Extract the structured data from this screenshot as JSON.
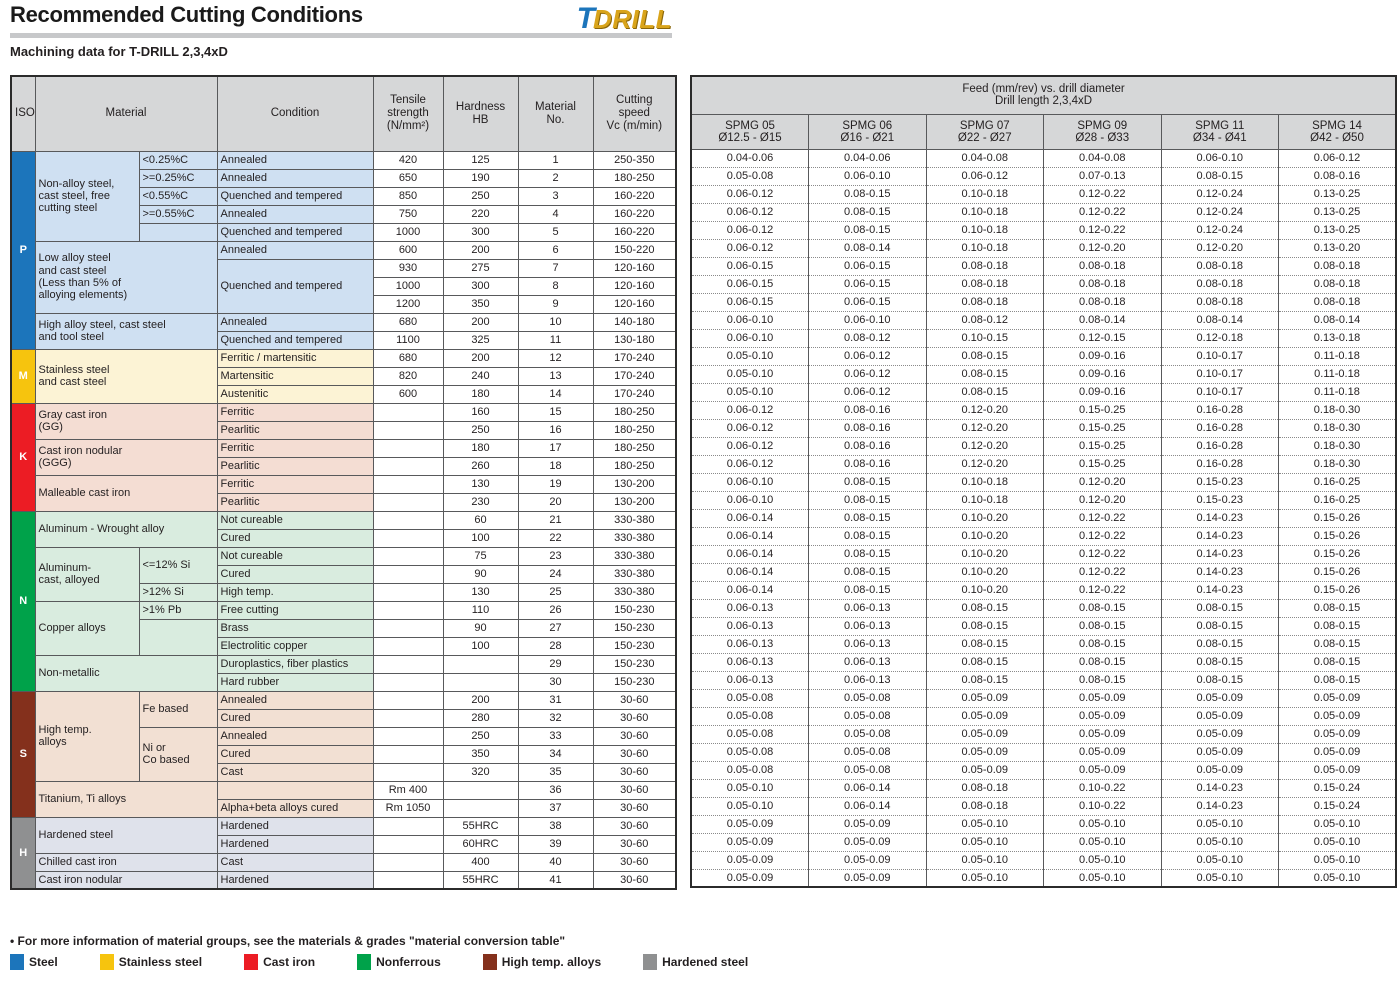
{
  "page": {
    "title": "Recommended Cutting Conditions",
    "subtitle": "Machining data for T-DRILL 2,3,4xD",
    "logo_t": "T",
    "logo_drill": "DRILL",
    "footnote": "• For more information of material groups, see the materials & grades \"material conversion table\""
  },
  "left_table": {
    "headers": {
      "iso": "ISO",
      "material": "Material",
      "condition": "Condition",
      "tensile": "Tensile\nstrength\n(N/mm²)",
      "hardness": "Hardness\nHB",
      "material_no": "Material\nNo.",
      "cutting_speed": "Cutting\nspeed\nVc (m/min)"
    }
  },
  "right_table": {
    "title": "Feed (mm/rev) vs. drill diameter\nDrill length 2,3,4xD",
    "columns": [
      {
        "name": "SPMG 05",
        "range": "Ø12.5 - Ø15"
      },
      {
        "name": "SPMG 06",
        "range": "Ø16 - Ø21"
      },
      {
        "name": "SPMG 07",
        "range": "Ø22 - Ø27"
      },
      {
        "name": "SPMG 09",
        "range": "Ø28 - Ø33"
      },
      {
        "name": "SPMG 11",
        "range": "Ø34 - Ø41"
      },
      {
        "name": "SPMG 14",
        "range": "Ø42 - Ø50"
      }
    ]
  },
  "iso_groups": [
    {
      "label": "P",
      "start": 1,
      "end": 11,
      "color": "#1c75bb",
      "bg": "#cfe0f2"
    },
    {
      "label": "M",
      "start": 12,
      "end": 14,
      "color": "#f6c40e",
      "bg": "#fcf3d5"
    },
    {
      "label": "K",
      "start": 15,
      "end": 20,
      "color": "#ec1c24",
      "bg": "#f4ddd3"
    },
    {
      "label": "N",
      "start": 21,
      "end": 30,
      "color": "#00a24a",
      "bg": "#d9ecdf"
    },
    {
      "label": "S",
      "start": 31,
      "end": 37,
      "color": "#84301c",
      "bg": "#f2e0d3"
    },
    {
      "label": "H",
      "start": 38,
      "end": 41,
      "color": "#8f9091",
      "bg": "#dfe2eb"
    }
  ],
  "material_groups": [
    {
      "label": "Non-alloy steel,\ncast steel, free\ncutting steel",
      "start": 1,
      "end": 5,
      "spec": true
    },
    {
      "label": "Low alloy steel\nand cast steel\n(Less than 5% of\nalloying elements)",
      "start": 6,
      "end": 9,
      "spec": false
    },
    {
      "label": "High alloy steel, cast steel\nand tool steel",
      "start": 10,
      "end": 11,
      "spec": false
    },
    {
      "label": "Stainless steel\nand cast steel",
      "start": 12,
      "end": 14,
      "spec": false
    },
    {
      "label": "Gray cast iron\n(GG)",
      "start": 15,
      "end": 16,
      "spec": false
    },
    {
      "label": "Cast iron nodular\n(GGG)",
      "start": 17,
      "end": 18,
      "spec": false
    },
    {
      "label": "Malleable cast iron",
      "start": 19,
      "end": 20,
      "spec": false
    },
    {
      "label": "Aluminum - Wrought alloy",
      "start": 21,
      "end": 22,
      "spec": false
    },
    {
      "label": "Aluminum-\ncast, alloyed",
      "start": 23,
      "end": 25,
      "spec": true
    },
    {
      "label": "Copper alloys",
      "start": 26,
      "end": 28,
      "spec": true
    },
    {
      "label": "Non-metallic",
      "start": 29,
      "end": 30,
      "spec": false
    },
    {
      "label": "High temp.\nalloys",
      "start": 31,
      "end": 35,
      "spec": true
    },
    {
      "label": "Titanium, Ti alloys",
      "start": 36,
      "end": 37,
      "spec": false
    },
    {
      "label": "Hardened steel",
      "start": 38,
      "end": 39,
      "spec": false
    },
    {
      "label": "Chilled cast iron",
      "start": 40,
      "end": 40,
      "spec": false
    },
    {
      "label": "Cast iron nodular",
      "start": 41,
      "end": 41,
      "spec": false
    }
  ],
  "spec_cells": {
    "1": {
      "text": "<0.25%C",
      "span": 1
    },
    "2": {
      "text": ">=0.25%C",
      "span": 1
    },
    "3": {
      "text": "<0.55%C",
      "span": 1
    },
    "4": {
      "text": ">=0.55%C",
      "span": 1
    },
    "5": {
      "text": "",
      "span": 1
    },
    "23": {
      "text": "<=12% Si",
      "span": 2
    },
    "25": {
      "text": ">12% Si",
      "span": 1
    },
    "26": {
      "text": ">1% Pb",
      "span": 1
    },
    "27": {
      "text": "",
      "span": 2
    },
    "31": {
      "text": "Fe based",
      "span": 2
    },
    "33": {
      "text": "Ni or\nCo based",
      "span": 3
    }
  },
  "condition_spans": {
    "7": 3
  },
  "rows": [
    {
      "no": "1",
      "cond": "Annealed",
      "tensile": "420",
      "hb": "125",
      "vc": "250-350",
      "feeds": [
        "0.04-0.06",
        "0.04-0.06",
        "0.04-0.08",
        "0.04-0.08",
        "0.06-0.10",
        "0.06-0.12"
      ]
    },
    {
      "no": "2",
      "cond": "Annealed",
      "tensile": "650",
      "hb": "190",
      "vc": "180-250",
      "feeds": [
        "0.05-0.08",
        "0.06-0.10",
        "0.06-0.12",
        "0.07-0.13",
        "0.08-0.15",
        "0.08-0.16"
      ]
    },
    {
      "no": "3",
      "cond": "Quenched and tempered",
      "tensile": "850",
      "hb": "250",
      "vc": "160-220",
      "feeds": [
        "0.06-0.12",
        "0.08-0.15",
        "0.10-0.18",
        "0.12-0.22",
        "0.12-0.24",
        "0.13-0.25"
      ]
    },
    {
      "no": "4",
      "cond": "Annealed",
      "tensile": "750",
      "hb": "220",
      "vc": "160-220",
      "feeds": [
        "0.06-0.12",
        "0.08-0.15",
        "0.10-0.18",
        "0.12-0.22",
        "0.12-0.24",
        "0.13-0.25"
      ]
    },
    {
      "no": "5",
      "cond": "Quenched and tempered",
      "tensile": "1000",
      "hb": "300",
      "vc": "160-220",
      "feeds": [
        "0.06-0.12",
        "0.08-0.15",
        "0.10-0.18",
        "0.12-0.22",
        "0.12-0.24",
        "0.13-0.25"
      ]
    },
    {
      "no": "6",
      "cond": "Annealed",
      "tensile": "600",
      "hb": "200",
      "vc": "150-220",
      "feeds": [
        "0.06-0.12",
        "0.08-0.14",
        "0.10-0.18",
        "0.12-0.20",
        "0.12-0.20",
        "0.13-0.20"
      ]
    },
    {
      "no": "7",
      "cond": "Quenched and tempered",
      "tensile": "930",
      "hb": "275",
      "vc": "120-160",
      "feeds": [
        "0.06-0.15",
        "0.06-0.15",
        "0.08-0.18",
        "0.08-0.18",
        "0.08-0.18",
        "0.08-0.18"
      ]
    },
    {
      "no": "8",
      "cond": "",
      "tensile": "1000",
      "hb": "300",
      "vc": "120-160",
      "feeds": [
        "0.06-0.15",
        "0.06-0.15",
        "0.08-0.18",
        "0.08-0.18",
        "0.08-0.18",
        "0.08-0.18"
      ]
    },
    {
      "no": "9",
      "cond": "",
      "tensile": "1200",
      "hb": "350",
      "vc": "120-160",
      "feeds": [
        "0.06-0.15",
        "0.06-0.15",
        "0.08-0.18",
        "0.08-0.18",
        "0.08-0.18",
        "0.08-0.18"
      ]
    },
    {
      "no": "10",
      "cond": "Annealed",
      "tensile": "680",
      "hb": "200",
      "vc": "140-180",
      "feeds": [
        "0.06-0.10",
        "0.06-0.10",
        "0.08-0.12",
        "0.08-0.14",
        "0.08-0.14",
        "0.08-0.14"
      ]
    },
    {
      "no": "11",
      "cond": "Quenched and tempered",
      "tensile": "1100",
      "hb": "325",
      "vc": "130-180",
      "feeds": [
        "0.06-0.10",
        "0.08-0.12",
        "0.10-0.15",
        "0.12-0.15",
        "0.12-0.18",
        "0.13-0.18"
      ]
    },
    {
      "no": "12",
      "cond": "Ferritic / martensitic",
      "tensile": "680",
      "hb": "200",
      "vc": "170-240",
      "feeds": [
        "0.05-0.10",
        "0.06-0.12",
        "0.08-0.15",
        "0.09-0.16",
        "0.10-0.17",
        "0.11-0.18"
      ]
    },
    {
      "no": "13",
      "cond": "Martensitic",
      "tensile": "820",
      "hb": "240",
      "vc": "170-240",
      "feeds": [
        "0.05-0.10",
        "0.06-0.12",
        "0.08-0.15",
        "0.09-0.16",
        "0.10-0.17",
        "0.11-0.18"
      ]
    },
    {
      "no": "14",
      "cond": "Austenitic",
      "tensile": "600",
      "hb": "180",
      "vc": "170-240",
      "feeds": [
        "0.05-0.10",
        "0.06-0.12",
        "0.08-0.15",
        "0.09-0.16",
        "0.10-0.17",
        "0.11-0.18"
      ]
    },
    {
      "no": "15",
      "cond": "Ferritic",
      "tensile": "",
      "hb": "160",
      "vc": "180-250",
      "feeds": [
        "0.06-0.12",
        "0.08-0.16",
        "0.12-0.20",
        "0.15-0.25",
        "0.16-0.28",
        "0.18-0.30"
      ]
    },
    {
      "no": "16",
      "cond": "Pearlitic",
      "tensile": "",
      "hb": "250",
      "vc": "180-250",
      "feeds": [
        "0.06-0.12",
        "0.08-0.16",
        "0.12-0.20",
        "0.15-0.25",
        "0.16-0.28",
        "0.18-0.30"
      ]
    },
    {
      "no": "17",
      "cond": "Ferritic",
      "tensile": "",
      "hb": "180",
      "vc": "180-250",
      "feeds": [
        "0.06-0.12",
        "0.08-0.16",
        "0.12-0.20",
        "0.15-0.25",
        "0.16-0.28",
        "0.18-0.30"
      ]
    },
    {
      "no": "18",
      "cond": "Pearlitic",
      "tensile": "",
      "hb": "260",
      "vc": "180-250",
      "feeds": [
        "0.06-0.12",
        "0.08-0.16",
        "0.12-0.20",
        "0.15-0.25",
        "0.16-0.28",
        "0.18-0.30"
      ]
    },
    {
      "no": "19",
      "cond": "Ferritic",
      "tensile": "",
      "hb": "130",
      "vc": "130-200",
      "feeds": [
        "0.06-0.10",
        "0.08-0.15",
        "0.10-0.18",
        "0.12-0.20",
        "0.15-0.23",
        "0.16-0.25"
      ]
    },
    {
      "no": "20",
      "cond": "Pearlitic",
      "tensile": "",
      "hb": "230",
      "vc": "130-200",
      "feeds": [
        "0.06-0.10",
        "0.08-0.15",
        "0.10-0.18",
        "0.12-0.20",
        "0.15-0.23",
        "0.16-0.25"
      ]
    },
    {
      "no": "21",
      "cond": "Not cureable",
      "tensile": "",
      "hb": "60",
      "vc": "330-380",
      "feeds": [
        "0.06-0.14",
        "0.08-0.15",
        "0.10-0.20",
        "0.12-0.22",
        "0.14-0.23",
        "0.15-0.26"
      ]
    },
    {
      "no": "22",
      "cond": "Cured",
      "tensile": "",
      "hb": "100",
      "vc": "330-380",
      "feeds": [
        "0.06-0.14",
        "0.08-0.15",
        "0.10-0.20",
        "0.12-0.22",
        "0.14-0.23",
        "0.15-0.26"
      ]
    },
    {
      "no": "23",
      "cond": "Not cureable",
      "tensile": "",
      "hb": "75",
      "vc": "330-380",
      "feeds": [
        "0.06-0.14",
        "0.08-0.15",
        "0.10-0.20",
        "0.12-0.22",
        "0.14-0.23",
        "0.15-0.26"
      ]
    },
    {
      "no": "24",
      "cond": "Cured",
      "tensile": "",
      "hb": "90",
      "vc": "330-380",
      "feeds": [
        "0.06-0.14",
        "0.08-0.15",
        "0.10-0.20",
        "0.12-0.22",
        "0.14-0.23",
        "0.15-0.26"
      ]
    },
    {
      "no": "25",
      "cond": "High temp.",
      "tensile": "",
      "hb": "130",
      "vc": "330-380",
      "feeds": [
        "0.06-0.14",
        "0.08-0.15",
        "0.10-0.20",
        "0.12-0.22",
        "0.14-0.23",
        "0.15-0.26"
      ]
    },
    {
      "no": "26",
      "cond": "Free cutting",
      "tensile": "",
      "hb": "110",
      "vc": "150-230",
      "feeds": [
        "0.06-0.13",
        "0.06-0.13",
        "0.08-0.15",
        "0.08-0.15",
        "0.08-0.15",
        "0.08-0.15"
      ]
    },
    {
      "no": "27",
      "cond": "Brass",
      "tensile": "",
      "hb": "90",
      "vc": "150-230",
      "feeds": [
        "0.06-0.13",
        "0.06-0.13",
        "0.08-0.15",
        "0.08-0.15",
        "0.08-0.15",
        "0.08-0.15"
      ]
    },
    {
      "no": "28",
      "cond": "Electrolitic copper",
      "tensile": "",
      "hb": "100",
      "vc": "150-230",
      "feeds": [
        "0.06-0.13",
        "0.06-0.13",
        "0.08-0.15",
        "0.08-0.15",
        "0.08-0.15",
        "0.08-0.15"
      ]
    },
    {
      "no": "29",
      "cond": "Duroplastics, fiber plastics",
      "tensile": "",
      "hb": "",
      "vc": "150-230",
      "feeds": [
        "0.06-0.13",
        "0.06-0.13",
        "0.08-0.15",
        "0.08-0.15",
        "0.08-0.15",
        "0.08-0.15"
      ]
    },
    {
      "no": "30",
      "cond": "Hard rubber",
      "tensile": "",
      "hb": "",
      "vc": "150-230",
      "feeds": [
        "0.06-0.13",
        "0.06-0.13",
        "0.08-0.15",
        "0.08-0.15",
        "0.08-0.15",
        "0.08-0.15"
      ]
    },
    {
      "no": "31",
      "cond": "Annealed",
      "tensile": "",
      "hb": "200",
      "vc": "30-60",
      "feeds": [
        "0.05-0.08",
        "0.05-0.08",
        "0.05-0.09",
        "0.05-0.09",
        "0.05-0.09",
        "0.05-0.09"
      ]
    },
    {
      "no": "32",
      "cond": "Cured",
      "tensile": "",
      "hb": "280",
      "vc": "30-60",
      "feeds": [
        "0.05-0.08",
        "0.05-0.08",
        "0.05-0.09",
        "0.05-0.09",
        "0.05-0.09",
        "0.05-0.09"
      ]
    },
    {
      "no": "33",
      "cond": "Annealed",
      "tensile": "",
      "hb": "250",
      "vc": "30-60",
      "feeds": [
        "0.05-0.08",
        "0.05-0.08",
        "0.05-0.09",
        "0.05-0.09",
        "0.05-0.09",
        "0.05-0.09"
      ]
    },
    {
      "no": "34",
      "cond": "Cured",
      "tensile": "",
      "hb": "350",
      "vc": "30-60",
      "feeds": [
        "0.05-0.08",
        "0.05-0.08",
        "0.05-0.09",
        "0.05-0.09",
        "0.05-0.09",
        "0.05-0.09"
      ]
    },
    {
      "no": "35",
      "cond": "Cast",
      "tensile": "",
      "hb": "320",
      "vc": "30-60",
      "feeds": [
        "0.05-0.08",
        "0.05-0.08",
        "0.05-0.09",
        "0.05-0.09",
        "0.05-0.09",
        "0.05-0.09"
      ]
    },
    {
      "no": "36",
      "cond": "",
      "tensile": "Rm 400",
      "hb": "",
      "vc": "30-60",
      "feeds": [
        "0.05-0.10",
        "0.06-0.14",
        "0.08-0.18",
        "0.10-0.22",
        "0.14-0.23",
        "0.15-0.24"
      ]
    },
    {
      "no": "37",
      "cond": "Alpha+beta alloys cured",
      "tensile": "Rm 1050",
      "hb": "",
      "vc": "30-60",
      "feeds": [
        "0.05-0.10",
        "0.06-0.14",
        "0.08-0.18",
        "0.10-0.22",
        "0.14-0.23",
        "0.15-0.24"
      ]
    },
    {
      "no": "38",
      "cond": "Hardened",
      "tensile": "",
      "hb": "55HRC",
      "vc": "30-60",
      "feeds": [
        "0.05-0.09",
        "0.05-0.09",
        "0.05-0.10",
        "0.05-0.10",
        "0.05-0.10",
        "0.05-0.10"
      ]
    },
    {
      "no": "39",
      "cond": "Hardened",
      "tensile": "",
      "hb": "60HRC",
      "vc": "30-60",
      "feeds": [
        "0.05-0.09",
        "0.05-0.09",
        "0.05-0.10",
        "0.05-0.10",
        "0.05-0.10",
        "0.05-0.10"
      ]
    },
    {
      "no": "40",
      "cond": "Cast",
      "tensile": "",
      "hb": "400",
      "vc": "30-60",
      "feeds": [
        "0.05-0.09",
        "0.05-0.09",
        "0.05-0.10",
        "0.05-0.10",
        "0.05-0.10",
        "0.05-0.10"
      ]
    },
    {
      "no": "41",
      "cond": "Hardened",
      "tensile": "",
      "hb": "55HRC",
      "vc": "30-60",
      "feeds": [
        "0.05-0.09",
        "0.05-0.09",
        "0.05-0.10",
        "0.05-0.10",
        "0.05-0.10",
        "0.05-0.10"
      ]
    }
  ],
  "legend": [
    {
      "label": "Steel",
      "color": "#1c75bb"
    },
    {
      "label": "Stainless steel",
      "color": "#f6c40e"
    },
    {
      "label": "Cast iron",
      "color": "#ec1c24"
    },
    {
      "label": "Nonferrous",
      "color": "#00a24a"
    },
    {
      "label": "High temp. alloys",
      "color": "#84301c"
    },
    {
      "label": "Hardened steel",
      "color": "#8f9091"
    }
  ]
}
